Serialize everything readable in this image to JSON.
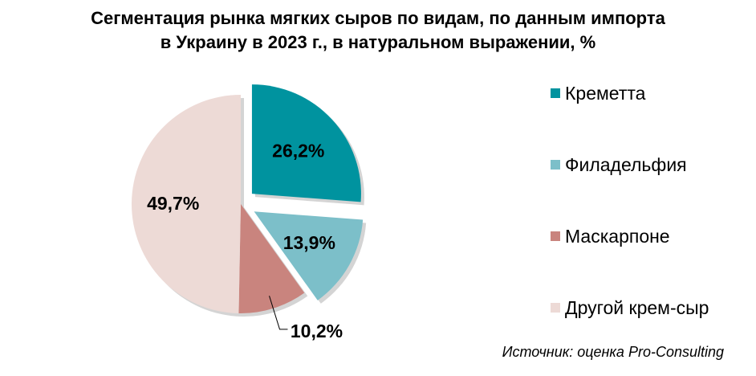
{
  "chart_data": {
    "type": "pie",
    "title_lines": [
      "Сегментация рынка мягких сыров по видам, по данным импорта",
      "в Украину в 2023 г., в натуральном выражении, %"
    ],
    "unit": "%",
    "slices": [
      {
        "name": "Креметта",
        "value": 26.2,
        "label": "26,2%",
        "color": "#00939f",
        "exploded": true
      },
      {
        "name": "Филадельфия",
        "value": 13.9,
        "label": "13,9%",
        "color": "#7cbfc9",
        "exploded": true
      },
      {
        "name": "Маскарпоне",
        "value": 10.2,
        "label": "10,2%",
        "color": "#c9847e",
        "exploded": false
      },
      {
        "name": "Другой крем-сыр",
        "value": 49.7,
        "label": "49,7%",
        "color": "#eddad6",
        "exploded": false
      }
    ],
    "legend_position": "right",
    "source": "Источник: оценка Pro-Consulting"
  }
}
